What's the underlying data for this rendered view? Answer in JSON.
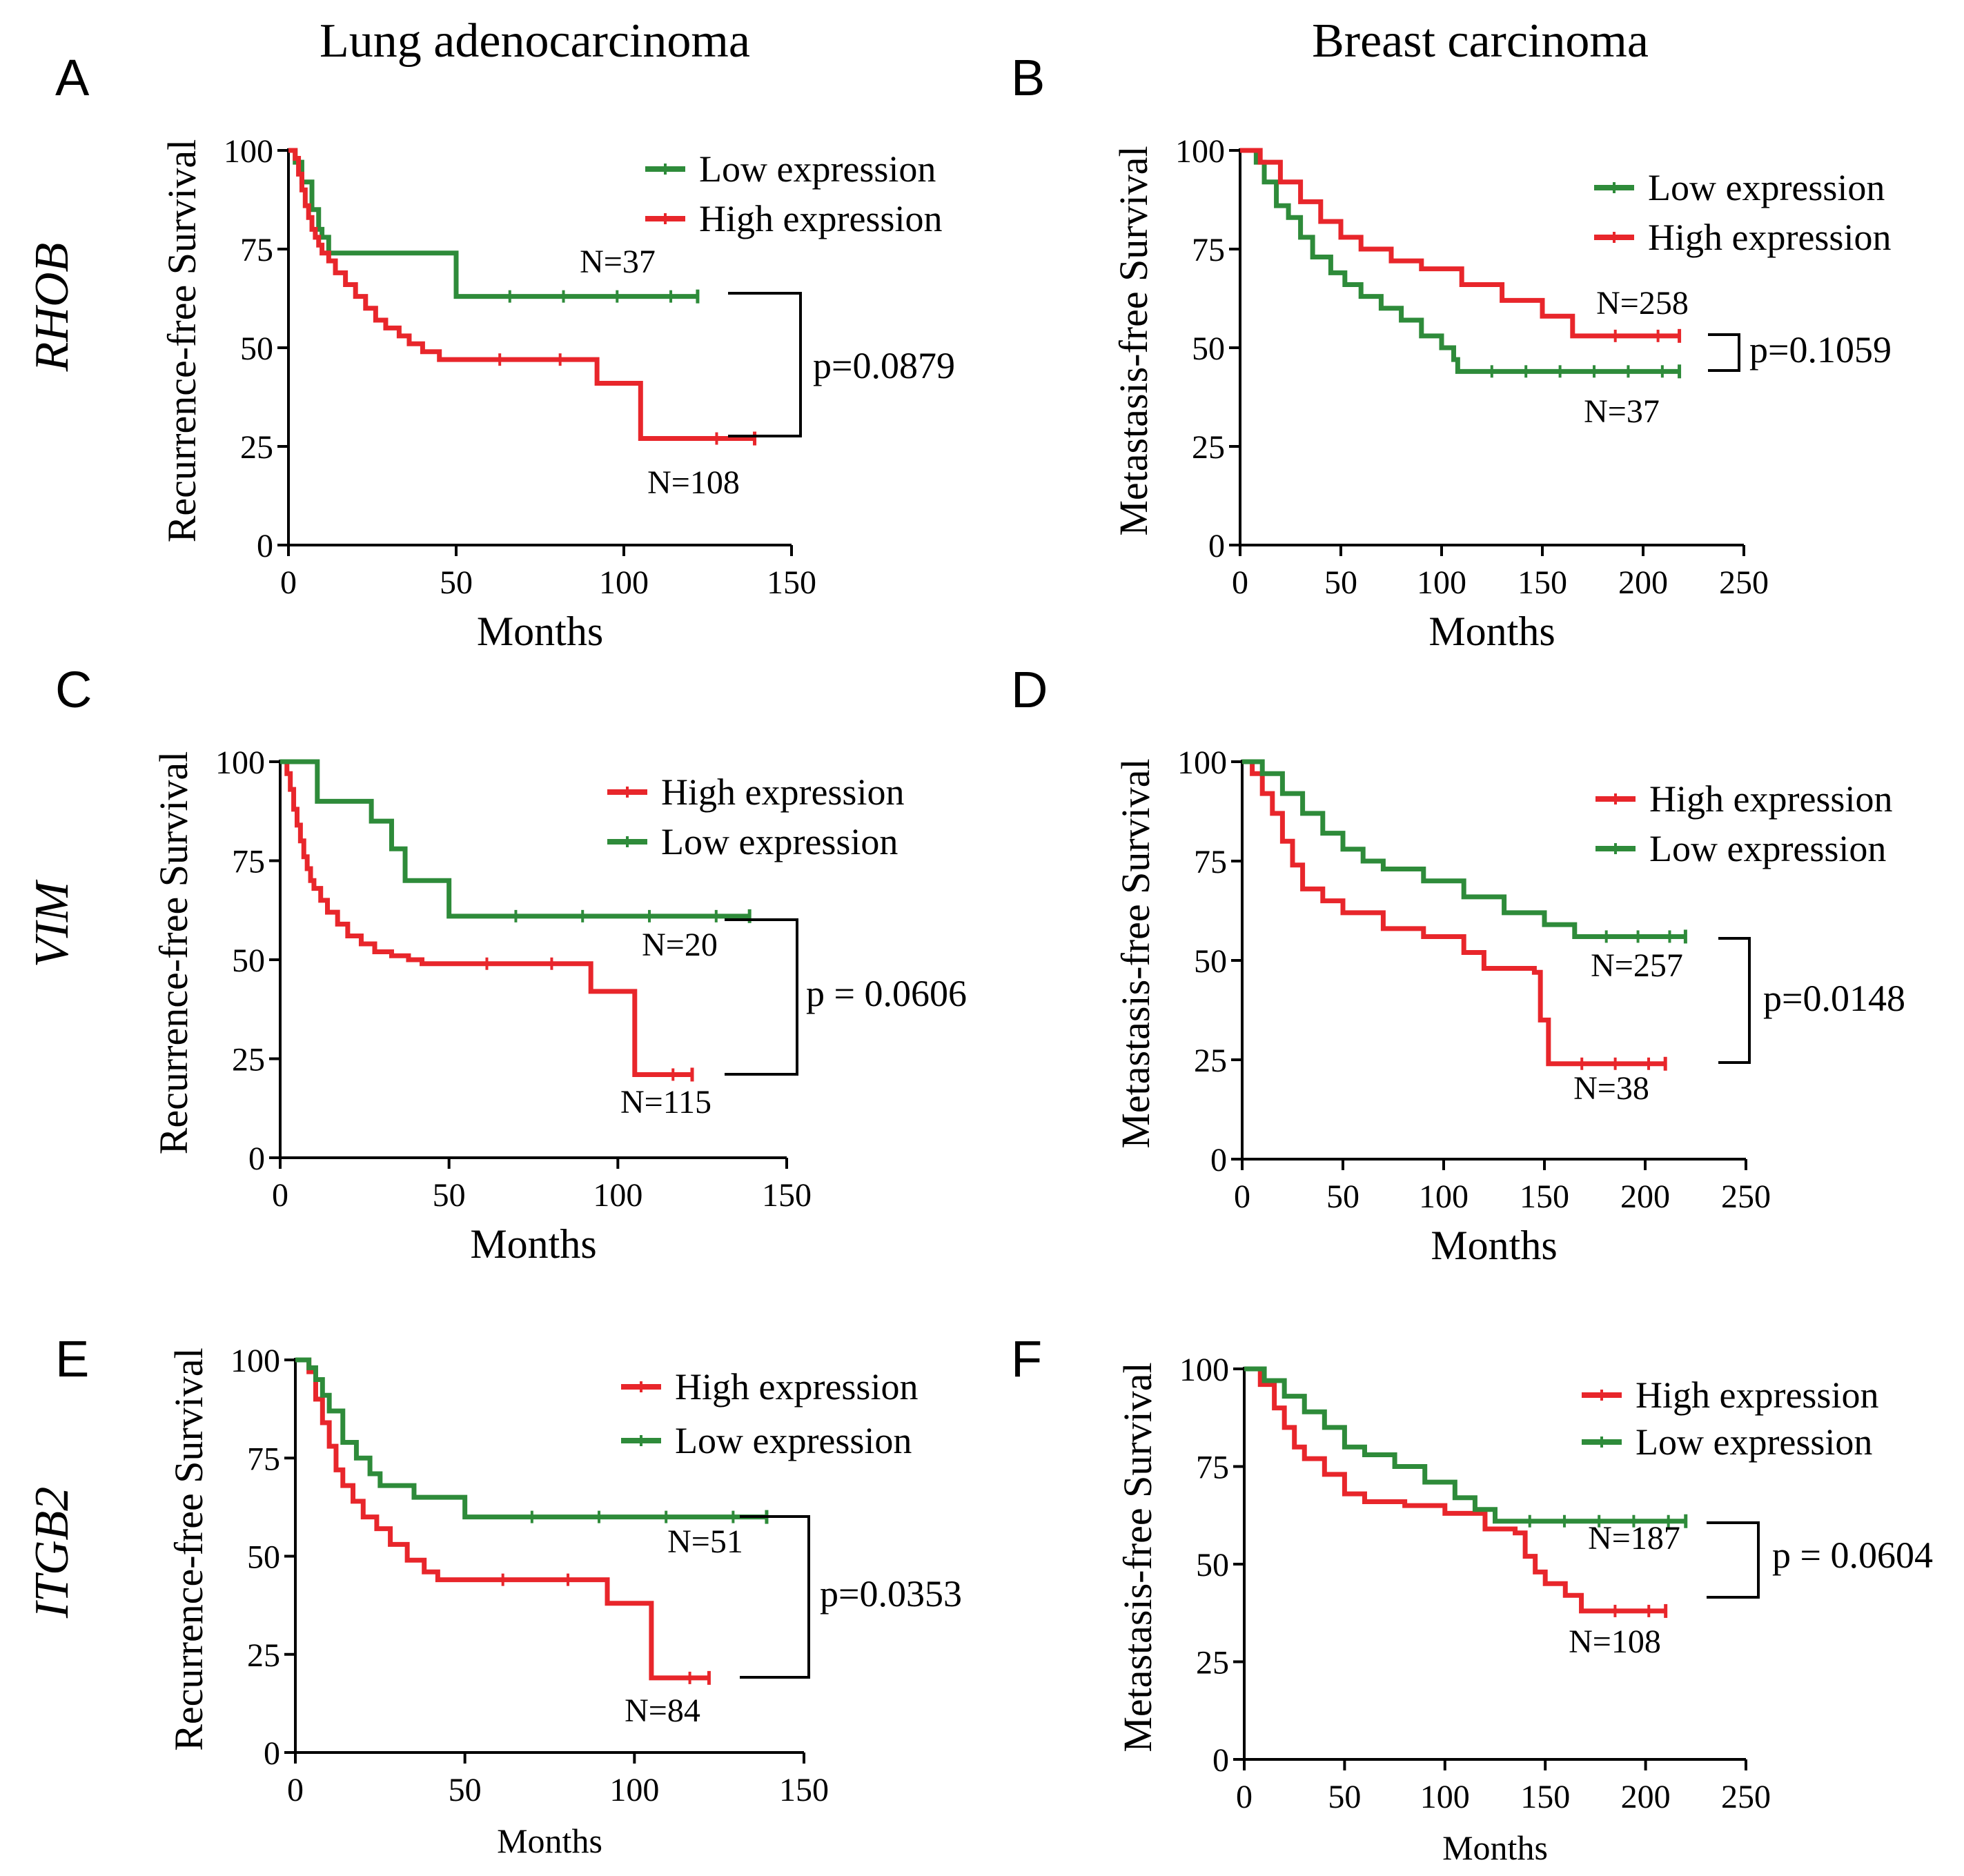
{
  "column_titles": [
    "Lung adenocarcinoma",
    "Breast carcinoma"
  ],
  "row_labels": [
    "RHOB",
    "VIM",
    "ITGB2"
  ],
  "colors": {
    "low": "#2E8B3A",
    "high": "#E8262B",
    "axis": "#000000"
  },
  "chart_data": [
    {
      "panel": "A",
      "type": "line",
      "subtype": "kaplan-meier",
      "cancer": "Lung adenocarcinoma",
      "gene": "RHOB",
      "ylabel": "Recurrence-free Survival",
      "xlabel": "Months",
      "xlim": [
        0,
        150
      ],
      "ylim": [
        0,
        100
      ],
      "xticks": [
        0,
        50,
        100,
        150
      ],
      "yticks": [
        0,
        25,
        50,
        75,
        100
      ],
      "legend": [
        "Low expression",
        "High expression"
      ],
      "legend_position": "top-right",
      "pvalue": "p=0.0879",
      "series": [
        {
          "name": "Low expression",
          "key": "low",
          "n_label": "N=37",
          "x": [
            0,
            2,
            4,
            7,
            9,
            10,
            12,
            50,
            122
          ],
          "y": [
            100,
            97,
            92,
            85,
            80,
            78,
            74,
            63,
            63
          ]
        },
        {
          "name": "High expression",
          "key": "high",
          "n_label": "N=108",
          "x": [
            0,
            2,
            3,
            4,
            5,
            6,
            7,
            8,
            9,
            10,
            12,
            14,
            17,
            20,
            23,
            26,
            29,
            33,
            36,
            40,
            45,
            90,
            92,
            105,
            139
          ],
          "y": [
            100,
            98,
            94,
            90,
            86,
            83,
            80,
            78,
            76,
            74,
            72,
            69,
            66,
            63,
            60,
            57,
            55,
            53,
            51,
            49,
            47,
            47,
            41,
            27,
            27
          ]
        }
      ]
    },
    {
      "panel": "B",
      "type": "line",
      "subtype": "kaplan-meier",
      "cancer": "Breast carcinoma",
      "gene": "RHOB",
      "ylabel": "Metastasis-free Survival",
      "xlabel": "Months",
      "xlim": [
        0,
        250
      ],
      "ylim": [
        0,
        100
      ],
      "xticks": [
        0,
        50,
        100,
        150,
        200,
        250
      ],
      "yticks": [
        0,
        25,
        50,
        75,
        100
      ],
      "legend": [
        "Low expression",
        "High expression"
      ],
      "legend_position": "top-right",
      "pvalue": "p=0.1059",
      "series": [
        {
          "name": "Low expression",
          "key": "low",
          "n_label": "N=37",
          "x": [
            0,
            8,
            12,
            18,
            24,
            30,
            36,
            45,
            52,
            60,
            70,
            80,
            90,
            100,
            106,
            108,
            218
          ],
          "y": [
            100,
            97,
            92,
            86,
            83,
            78,
            73,
            69,
            66,
            63,
            60,
            57,
            53,
            50,
            47,
            44,
            44
          ]
        },
        {
          "name": "High expression",
          "key": "high",
          "n_label": "N=258",
          "x": [
            0,
            10,
            20,
            30,
            40,
            50,
            60,
            75,
            90,
            110,
            130,
            150,
            165,
            218
          ],
          "y": [
            100,
            97,
            92,
            87,
            82,
            78,
            75,
            72,
            70,
            66,
            62,
            58,
            53,
            53
          ]
        }
      ]
    },
    {
      "panel": "C",
      "type": "line",
      "subtype": "kaplan-meier",
      "cancer": "Lung adenocarcinoma",
      "gene": "VIM",
      "ylabel": "Recurrence-free Survival",
      "xlabel": "Months",
      "xlim": [
        0,
        150
      ],
      "ylim": [
        0,
        100
      ],
      "xticks": [
        0,
        50,
        100,
        150
      ],
      "yticks": [
        0,
        25,
        50,
        75,
        100
      ],
      "legend": [
        "High expression",
        "Low expression"
      ],
      "legend_position": "top-right",
      "pvalue": "p = 0.0606",
      "series": [
        {
          "name": "High expression",
          "key": "high",
          "n_label": "N=115",
          "x": [
            0,
            2,
            3,
            4,
            5,
            6,
            7,
            8,
            9,
            10,
            12,
            14,
            17,
            20,
            24,
            28,
            33,
            38,
            42,
            90,
            92,
            105,
            122
          ],
          "y": [
            100,
            97,
            93,
            88,
            84,
            80,
            76,
            73,
            70,
            68,
            65,
            62,
            59,
            56,
            54,
            52,
            51,
            50,
            49,
            49,
            42,
            21,
            21
          ]
        },
        {
          "name": "Low expression",
          "key": "low",
          "n_label": "N=20",
          "x": [
            0,
            11,
            27,
            33,
            37,
            50,
            139
          ],
          "y": [
            100,
            90,
            85,
            78,
            70,
            61,
            61
          ]
        }
      ]
    },
    {
      "panel": "D",
      "type": "line",
      "subtype": "kaplan-meier",
      "cancer": "Breast carcinoma",
      "gene": "VIM",
      "ylabel": "Metastasis-free Survival",
      "xlabel": "Months",
      "xlim": [
        0,
        250
      ],
      "ylim": [
        0,
        100
      ],
      "xticks": [
        0,
        50,
        100,
        150,
        200,
        250
      ],
      "yticks": [
        0,
        25,
        50,
        75,
        100
      ],
      "legend": [
        "High expression",
        "Low expression"
      ],
      "legend_position": "top-right",
      "pvalue": "p=0.0148",
      "series": [
        {
          "name": "High expression",
          "key": "high",
          "n_label": "N=38",
          "x": [
            0,
            5,
            10,
            15,
            20,
            25,
            30,
            40,
            50,
            70,
            90,
            110,
            120,
            145,
            148,
            152,
            210
          ],
          "y": [
            100,
            97,
            92,
            87,
            80,
            74,
            68,
            65,
            62,
            58,
            56,
            52,
            48,
            47,
            35,
            24,
            24
          ]
        },
        {
          "name": "Low expression",
          "key": "low",
          "n_label": "N=257",
          "x": [
            0,
            10,
            20,
            30,
            40,
            50,
            60,
            70,
            90,
            110,
            130,
            150,
            165,
            220
          ],
          "y": [
            100,
            97,
            92,
            87,
            82,
            78,
            75,
            73,
            70,
            66,
            62,
            59,
            56,
            56
          ]
        }
      ]
    },
    {
      "panel": "E",
      "type": "line",
      "subtype": "kaplan-meier",
      "cancer": "Lung adenocarcinoma",
      "gene": "ITGB2",
      "ylabel": "Recurrence-free Survival",
      "xlabel": "Months",
      "xlim": [
        0,
        150
      ],
      "ylim": [
        0,
        100
      ],
      "xticks": [
        0,
        50,
        100,
        150
      ],
      "yticks": [
        0,
        25,
        50,
        75,
        100
      ],
      "legend": [
        "High expression",
        "Low expression"
      ],
      "legend_position": "top-right",
      "pvalue": "p=0.0353",
      "series": [
        {
          "name": "High expression",
          "key": "high",
          "n_label": "N=84",
          "x": [
            0,
            4,
            6,
            8,
            10,
            12,
            14,
            17,
            20,
            24,
            28,
            33,
            38,
            42,
            90,
            92,
            105,
            122
          ],
          "y": [
            100,
            97,
            90,
            84,
            78,
            72,
            68,
            64,
            60,
            57,
            53,
            49,
            46,
            44,
            44,
            38,
            19,
            19
          ]
        },
        {
          "name": "Low expression",
          "key": "low",
          "n_label": "N=51",
          "x": [
            0,
            4,
            6,
            8,
            10,
            14,
            18,
            22,
            25,
            35,
            50,
            139
          ],
          "y": [
            100,
            98,
            95,
            91,
            87,
            79,
            75,
            71,
            68,
            65,
            60,
            60
          ]
        }
      ]
    },
    {
      "panel": "F",
      "type": "line",
      "subtype": "kaplan-meier",
      "cancer": "Breast carcinoma",
      "gene": "ITGB2",
      "ylabel": "Metastasis-free Survival",
      "xlabel": "Months",
      "xlim": [
        0,
        250
      ],
      "ylim": [
        0,
        100
      ],
      "xticks": [
        0,
        50,
        100,
        150,
        200,
        250
      ],
      "yticks": [
        0,
        25,
        50,
        75,
        100
      ],
      "legend": [
        "High expression",
        "Low expression"
      ],
      "legend_position": "top-right",
      "pvalue": "p = 0.0604",
      "series": [
        {
          "name": "High expression",
          "key": "high",
          "n_label": "N=108",
          "x": [
            0,
            8,
            15,
            20,
            25,
            30,
            40,
            50,
            60,
            80,
            100,
            120,
            135,
            140,
            145,
            150,
            160,
            168,
            210
          ],
          "y": [
            100,
            96,
            90,
            85,
            80,
            77,
            73,
            68,
            66,
            65,
            63,
            59,
            58,
            52,
            48,
            45,
            42,
            38,
            38
          ]
        },
        {
          "name": "Low expression",
          "key": "low",
          "n_label": "N=187",
          "x": [
            0,
            10,
            20,
            30,
            40,
            50,
            60,
            75,
            90,
            105,
            115,
            125,
            220
          ],
          "y": [
            100,
            97,
            93,
            89,
            85,
            80,
            78,
            75,
            71,
            67,
            64,
            61,
            61
          ]
        }
      ]
    }
  ]
}
